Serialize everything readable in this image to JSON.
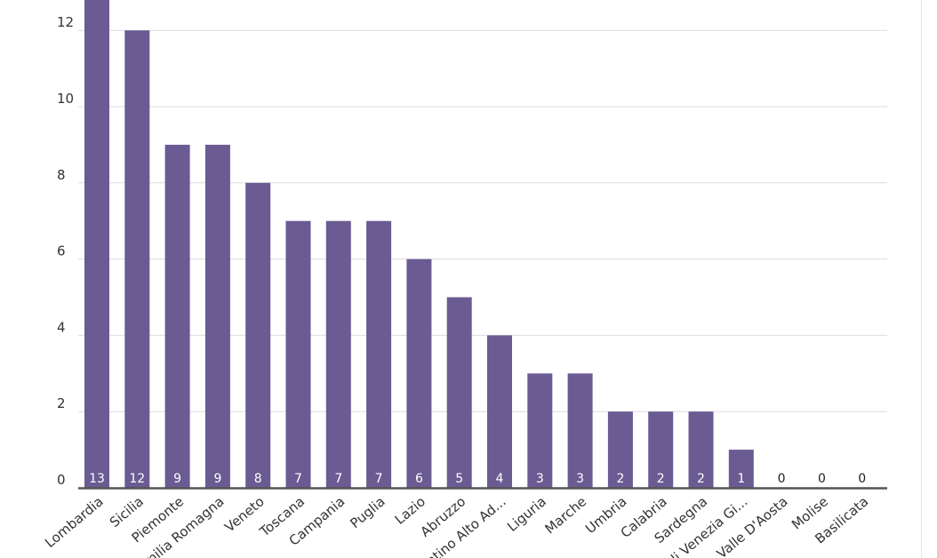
{
  "chart_data": {
    "type": "bar",
    "title": "",
    "xlabel": "",
    "ylabel": "",
    "categories": [
      "Lombardia",
      "Sicilia",
      "Piemonte",
      "Emilia Romagna",
      "Veneto",
      "Toscana",
      "Campania",
      "Puglia",
      "Lazio",
      "Abruzzo",
      "Trentino Alto Ad...",
      "Liguria",
      "Marche",
      "Umbria",
      "Calabria",
      "Sardegna",
      "Friuli Venezia Gi...",
      "Valle D'Aosta",
      "Molise",
      "Basilicata"
    ],
    "values": [
      13,
      12,
      9,
      9,
      8,
      7,
      7,
      7,
      6,
      5,
      4,
      3,
      3,
      2,
      2,
      2,
      1,
      0,
      0,
      0
    ],
    "value_labels": [
      "13",
      "12",
      "9",
      "9",
      "8",
      "7",
      "7",
      "7",
      "6",
      "5",
      "4",
      "3",
      "3",
      "2",
      "2",
      "2",
      "1",
      "0",
      "0",
      "0"
    ],
    "yticks": [
      0,
      2,
      4,
      6,
      8,
      10,
      12
    ],
    "ytick_labels": [
      "0",
      "2",
      "4",
      "6",
      "8",
      "10",
      "12"
    ],
    "ylim": [
      0,
      12
    ],
    "grid": true,
    "legend": "none",
    "colors": {
      "bar": "#6a5b93",
      "grid": "#dcdcdc",
      "axis": "#555555",
      "text": "#333333",
      "label_inside": "#ffffff",
      "label_outside": "#222222"
    }
  }
}
